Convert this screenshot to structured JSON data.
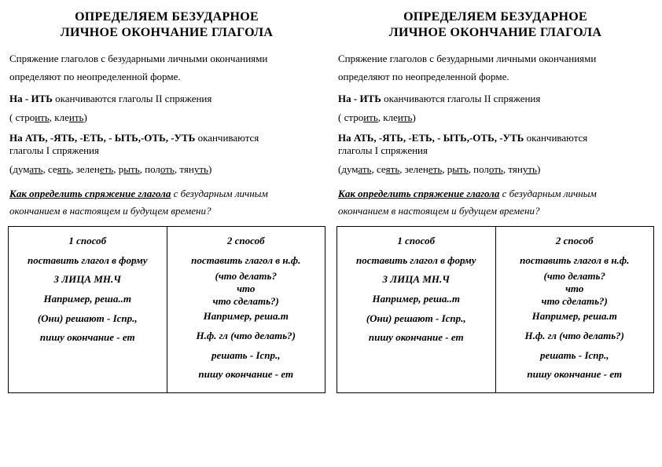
{
  "title_line1": "ОПРЕДЕЛЯЕМ БЕЗУДАРНОЕ",
  "title_line2": "ЛИЧНОЕ ОКОНЧАНИЕ ГЛАГОЛА",
  "intro_l1": "Спряжение глаголов с безударными личными окончаниями",
  "intro_l2": "определяют по неопределенной форме.",
  "rule2_prefix": "На - ИТЬ ",
  "rule2_rest": "оканчиваются глаголы II спряжения",
  "ex2_open": "( стро",
  "ex2_u1": "ить",
  "ex2_mid": ", кле",
  "ex2_u2": "ить",
  "ex2_close": ")",
  "rule1_prefix": "На АТЬ, -ЯТЬ, -ЕТЬ, - ЫТЬ,-ОТЬ, -УТЬ ",
  "rule1_rest": "оканчиваются",
  "rule1_l2": "глаголы I спряжения",
  "ex1_open": "(дум",
  "ex1_u1": "ать",
  "ex1_s1": ", се",
  "ex1_u2": "ять",
  "ex1_s2": ", зелен",
  "ex1_u3": "еть",
  "ex1_s3": ", р",
  "ex1_u4": "ыть",
  "ex1_s4": ", пол",
  "ex1_u5": "оть",
  "ex1_s5": ", тян",
  "ex1_u6": "уть",
  "ex1_close": ")",
  "q_lead": "Как определить спряжение глагола",
  "q_rest1": " с безударным личным",
  "q_rest2": "окончанием в настоящем и будущем времени?",
  "table": {
    "h1": "1 способ",
    "h2": "2 способ",
    "c1_l1": "поставить глагол в форму",
    "c1_l2": "3 ЛИЦА МН.Ч",
    "c1_l3": "Например, реша..т",
    "c1_l4": "(Они) решают - Iспр.,",
    "c1_l5": "пишу окончание - ет",
    "c2_l1": "поставить глагол в н.ф.",
    "c2_l2a": "(что делать?",
    "c2_l2b": "что",
    "c2_l2c": "что сделать?)",
    "c2_l3": "Например, реша.т",
    "c2_l4": "Н.ф. гл (что делать?)",
    "c2_l5": "решать - Iспр.,",
    "c2_l6": "пишу окончание - ет"
  }
}
